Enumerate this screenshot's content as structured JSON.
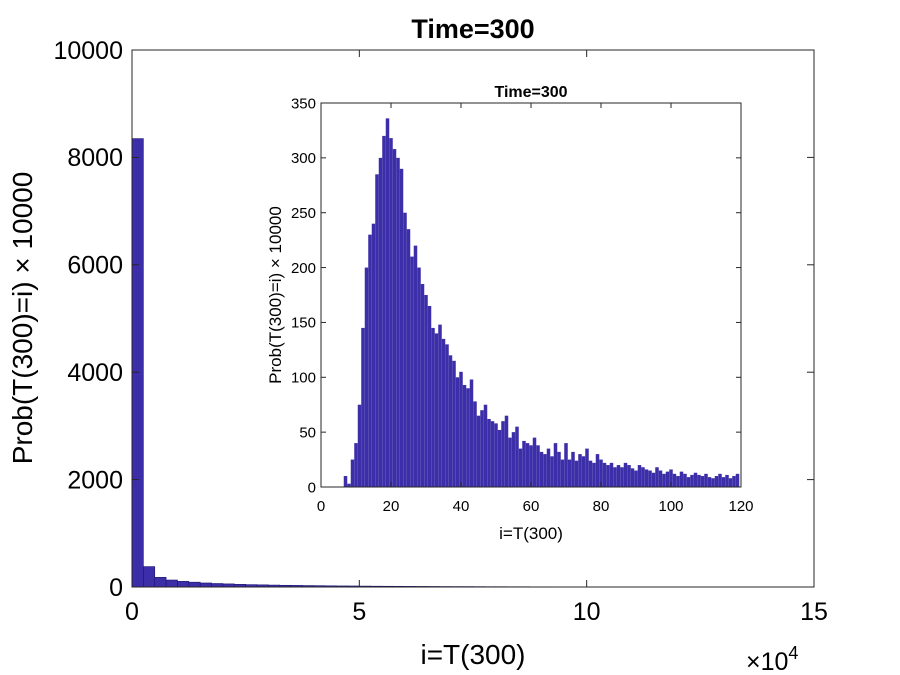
{
  "chart_data": [
    {
      "type": "bar",
      "title": "Time=300",
      "xlabel": "i=T(300)",
      "ylabel": "Prob(T(300)=i) × 10000",
      "x_exponent_label": "×10",
      "x_exponent_power": "4",
      "xlim": [
        0,
        15
      ],
      "ylim": [
        0,
        10000
      ],
      "xticks": [
        "0",
        "5",
        "10",
        "15"
      ],
      "yticks": [
        "0",
        "2000",
        "4000",
        "6000",
        "8000",
        "10000"
      ],
      "bin_width": 0.25,
      "x": [
        0.125,
        0.375,
        0.625,
        0.875,
        1.125,
        1.375,
        1.625,
        1.875,
        2.125,
        2.375,
        2.625,
        2.875,
        3.125,
        3.375,
        3.625,
        3.875,
        4.125,
        4.375,
        4.625,
        4.875,
        5.125,
        5.375,
        5.625,
        5.875,
        6.125,
        6.375,
        6.625,
        6.875,
        7.125,
        7.375,
        7.625,
        7.875,
        8.125,
        8.375,
        8.625,
        8.875,
        9.125,
        9.375,
        9.625,
        9.875
      ],
      "values": [
        8350,
        380,
        180,
        130,
        105,
        90,
        75,
        65,
        58,
        50,
        44,
        40,
        36,
        32,
        30,
        27,
        25,
        22,
        20,
        19,
        17,
        15,
        14,
        13,
        12,
        11,
        10,
        9,
        8,
        8,
        7,
        6,
        6,
        5,
        5,
        4,
        4,
        3,
        3,
        2
      ]
    },
    {
      "type": "bar",
      "title": "Time=300",
      "xlabel": "i=T(300)",
      "ylabel": "Prob(T(300)=i) × 10000",
      "xlim": [
        0,
        120
      ],
      "ylim": [
        0,
        350
      ],
      "xticks": [
        "0",
        "20",
        "40",
        "60",
        "80",
        "100",
        "120"
      ],
      "yticks": [
        "0",
        "50",
        "100",
        "150",
        "200",
        "250",
        "300",
        "350"
      ],
      "bin_width": 1,
      "x": [
        7,
        8,
        9,
        10,
        11,
        12,
        13,
        14,
        15,
        16,
        17,
        18,
        19,
        20,
        21,
        22,
        23,
        24,
        25,
        26,
        27,
        28,
        29,
        30,
        31,
        32,
        33,
        34,
        35,
        36,
        37,
        38,
        39,
        40,
        41,
        42,
        43,
        44,
        45,
        46,
        47,
        48,
        49,
        50,
        51,
        52,
        53,
        54,
        55,
        56,
        57,
        58,
        59,
        60,
        61,
        62,
        63,
        64,
        65,
        66,
        67,
        68,
        69,
        70,
        71,
        72,
        73,
        74,
        75,
        76,
        77,
        78,
        79,
        80,
        81,
        82,
        83,
        84,
        85,
        86,
        87,
        88,
        89,
        90,
        91,
        92,
        93,
        94,
        95,
        96,
        97,
        98,
        99,
        100,
        101,
        102,
        103,
        104,
        105,
        106,
        107,
        108,
        109,
        110,
        111,
        112,
        113,
        114,
        115,
        116,
        117,
        118,
        119
      ],
      "values": [
        10,
        3,
        25,
        40,
        75,
        145,
        200,
        230,
        240,
        285,
        300,
        320,
        336,
        318,
        308,
        300,
        290,
        250,
        235,
        210,
        220,
        200,
        185,
        175,
        165,
        145,
        140,
        148,
        135,
        130,
        120,
        115,
        100,
        105,
        93,
        90,
        98,
        78,
        65,
        70,
        75,
        62,
        60,
        58,
        52,
        60,
        65,
        45,
        50,
        55,
        35,
        42,
        40,
        38,
        45,
        38,
        32,
        30,
        35,
        28,
        40,
        32,
        25,
        40,
        25,
        32,
        24,
        30,
        28,
        35,
        24,
        22,
        30,
        25,
        22,
        20,
        22,
        18,
        20,
        18,
        22,
        20,
        17,
        15,
        20,
        18,
        16,
        15,
        13,
        18,
        15,
        12,
        14,
        16,
        12,
        10,
        14,
        12,
        9,
        11,
        13,
        11,
        10,
        12,
        9,
        8,
        10,
        12,
        9,
        11,
        8,
        10,
        12
      ]
    }
  ]
}
